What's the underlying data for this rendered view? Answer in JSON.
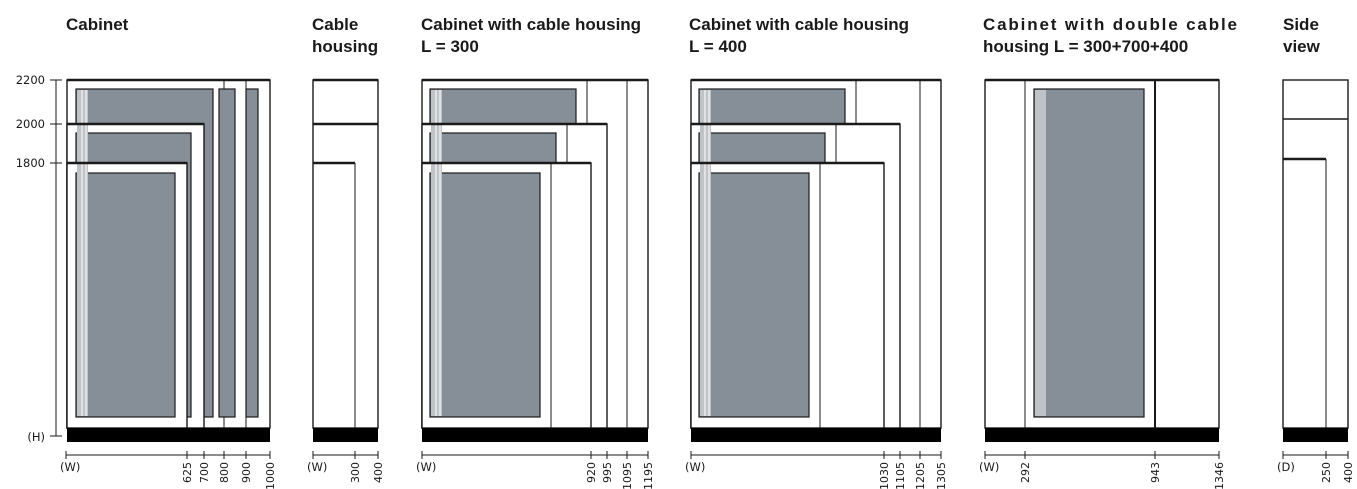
{
  "panels": {
    "cabinet": {
      "title": [
        "Cabinet"
      ],
      "w_ticks": [
        "625",
        "700",
        "800",
        "900",
        "1000"
      ]
    },
    "cable_housing": {
      "title": [
        "Cable",
        "housing"
      ],
      "w_ticks": [
        "300",
        "400"
      ]
    },
    "cabinet_300": {
      "title": [
        "Cabinet with cable housing",
        "L = 300"
      ],
      "w_ticks": [
        "920",
        "995",
        "1095",
        "1195"
      ]
    },
    "cabinet_400": {
      "title": [
        "Cabinet with cable housing",
        "L = 400"
      ],
      "w_ticks": [
        "1030",
        "1105",
        "1205",
        "1305"
      ]
    },
    "cabinet_double": {
      "title": [
        "Cabinet  with  double  cable",
        "housing L = 300+700+400"
      ],
      "w_ticks": [
        "292",
        "943",
        "1346"
      ]
    },
    "side_view": {
      "title": [
        "Side",
        "view"
      ],
      "d_ticks": [
        "250",
        "400"
      ]
    }
  },
  "height_axis": {
    "ticks": [
      "2200",
      "2000",
      "1800"
    ],
    "label": "(H)"
  },
  "width_axis_label": "(W)",
  "depth_axis_label": "(D)",
  "colors": {
    "door": "#868f97",
    "base": "#000000",
    "line": "#1a1a1a"
  }
}
